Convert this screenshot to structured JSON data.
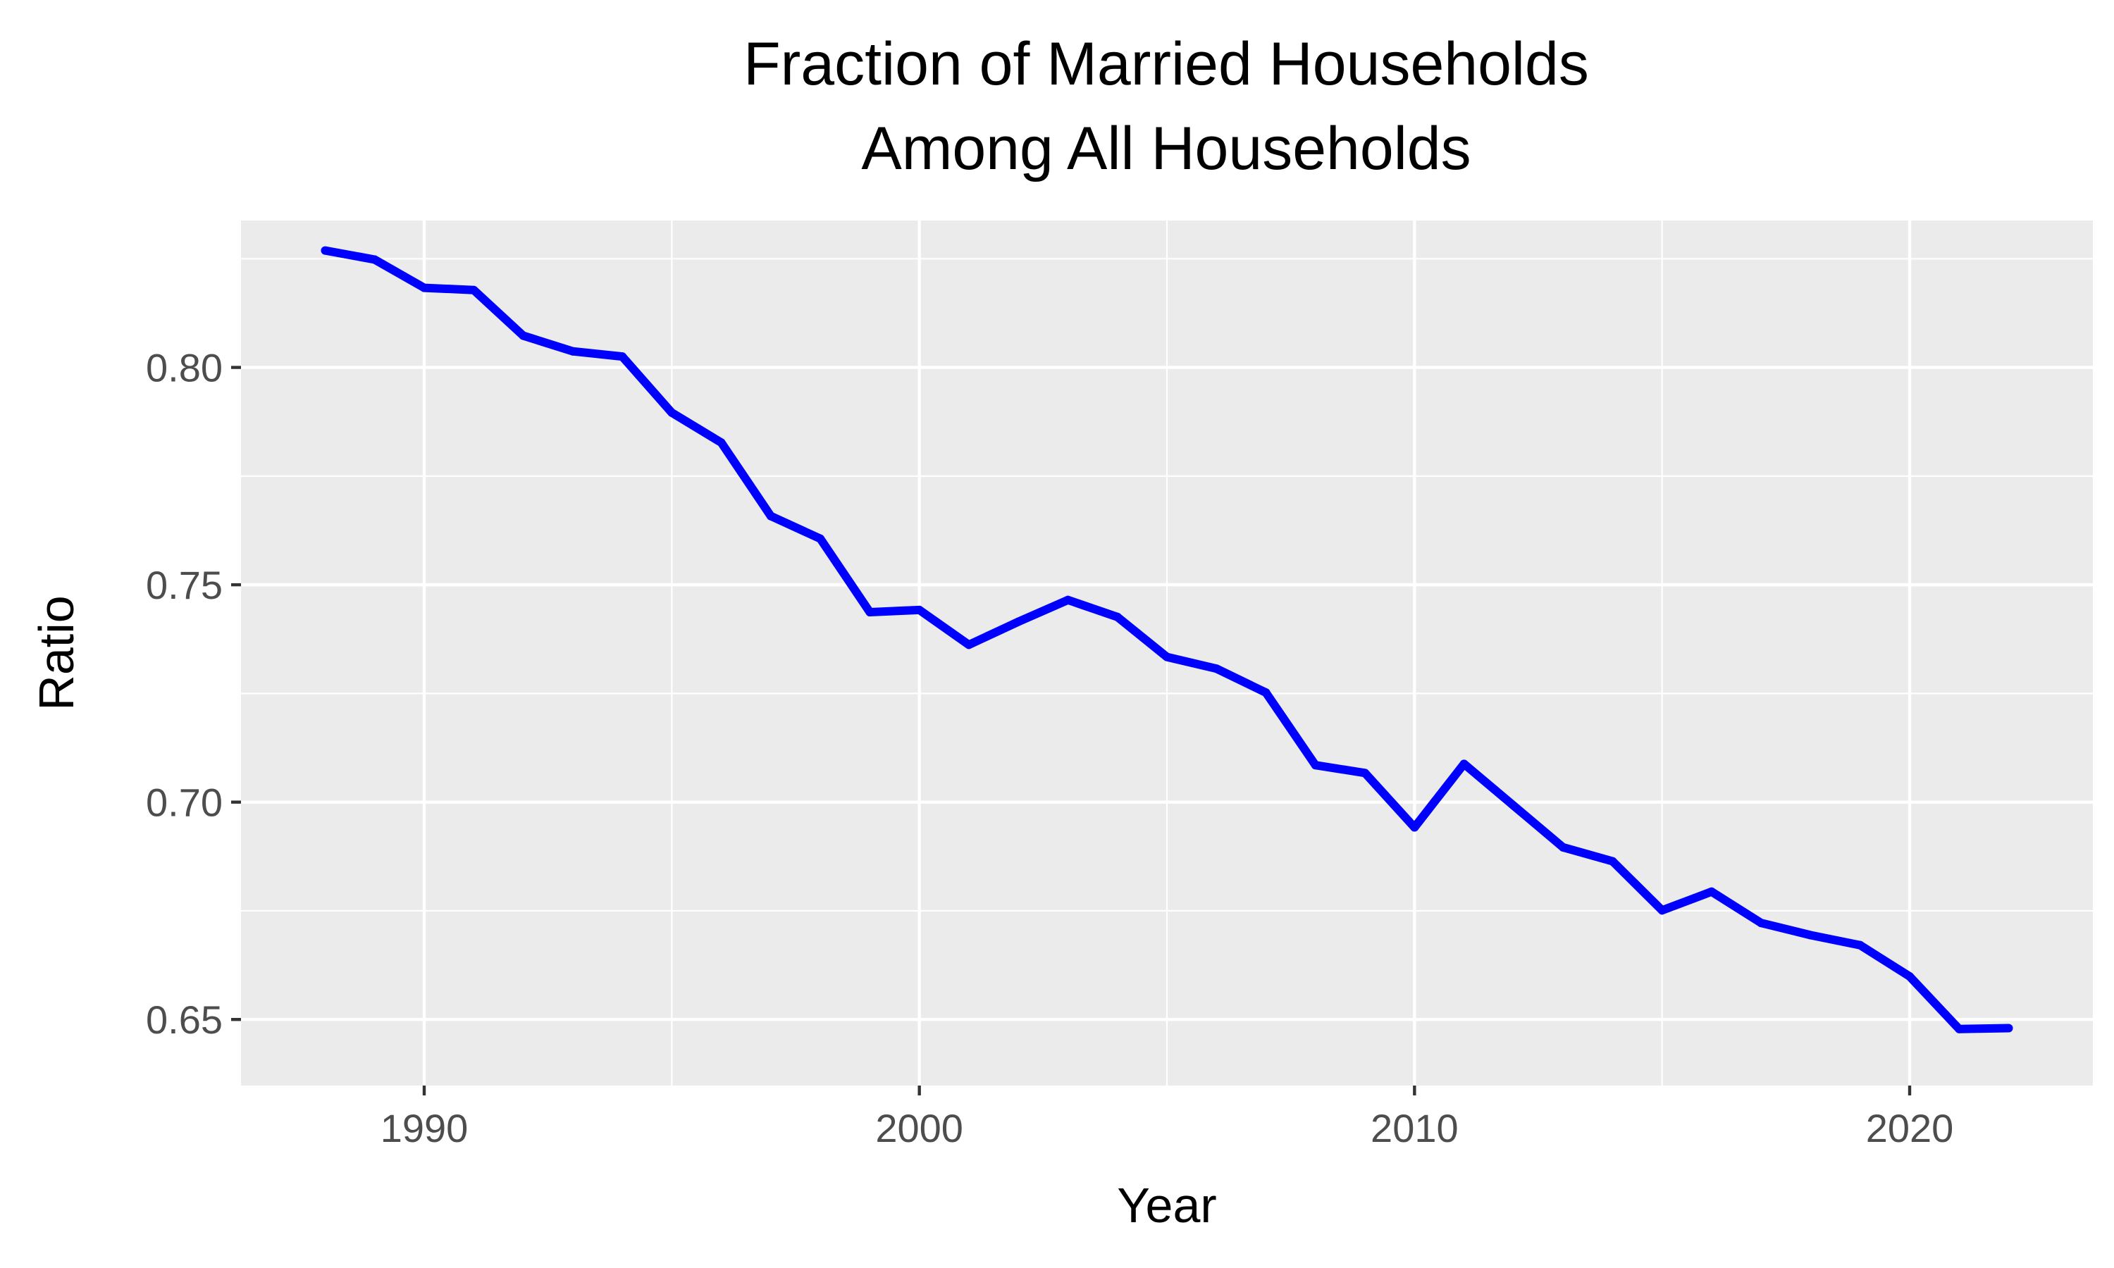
{
  "chart_data": {
    "type": "line",
    "title": [
      "Fraction of Married Households",
      "Among All Households"
    ],
    "xlabel": "Year",
    "ylabel": "Ratio",
    "xlim": [
      1986.3,
      2023.7
    ],
    "ylim": [
      0.6348,
      0.8338
    ],
    "x_ticks": [
      1990,
      2000,
      2010,
      2020
    ],
    "x_tick_labels": [
      "1990",
      "2000",
      "2010",
      "2020"
    ],
    "x_minor_ticks": [
      1995,
      2005,
      2015
    ],
    "y_ticks": [
      0.65,
      0.7,
      0.75,
      0.8
    ],
    "y_tick_labels": [
      "0.65",
      "0.70",
      "0.75",
      "0.80"
    ],
    "y_minor_ticks": [
      0.675,
      0.725,
      0.775,
      0.825
    ],
    "grid": true,
    "legend": "none",
    "series": [
      {
        "color": "#0000ff",
        "x": [
          1988,
          1989,
          1990,
          1991,
          1992,
          1993,
          1994,
          1995,
          1996,
          1997,
          1998,
          1999,
          2000,
          2001,
          2002,
          2003,
          2004,
          2005,
          2006,
          2007,
          2008,
          2009,
          2010,
          2011,
          2012,
          2013,
          2014,
          2015,
          2016,
          2017,
          2018,
          2019,
          2020,
          2021,
          2022
        ],
        "values": [
          0.8269,
          0.8248,
          0.8183,
          0.8178,
          0.8073,
          0.8037,
          0.8025,
          0.7896,
          0.7827,
          0.7658,
          0.7606,
          0.7437,
          0.7442,
          0.7362,
          0.7415,
          0.7465,
          0.7426,
          0.7334,
          0.7307,
          0.7252,
          0.7085,
          0.7067,
          0.6942,
          0.7088,
          0.6992,
          0.6896,
          0.6864,
          0.6751,
          0.6794,
          0.6722,
          0.6694,
          0.6671,
          0.6599,
          0.6478,
          0.648
        ]
      }
    ]
  },
  "colors": {
    "panel_background": "#ebebeb",
    "grid": "#ffffff",
    "tick_label": "#4d4d4d",
    "tick_mark": "#333333",
    "line": "#0000ff"
  }
}
